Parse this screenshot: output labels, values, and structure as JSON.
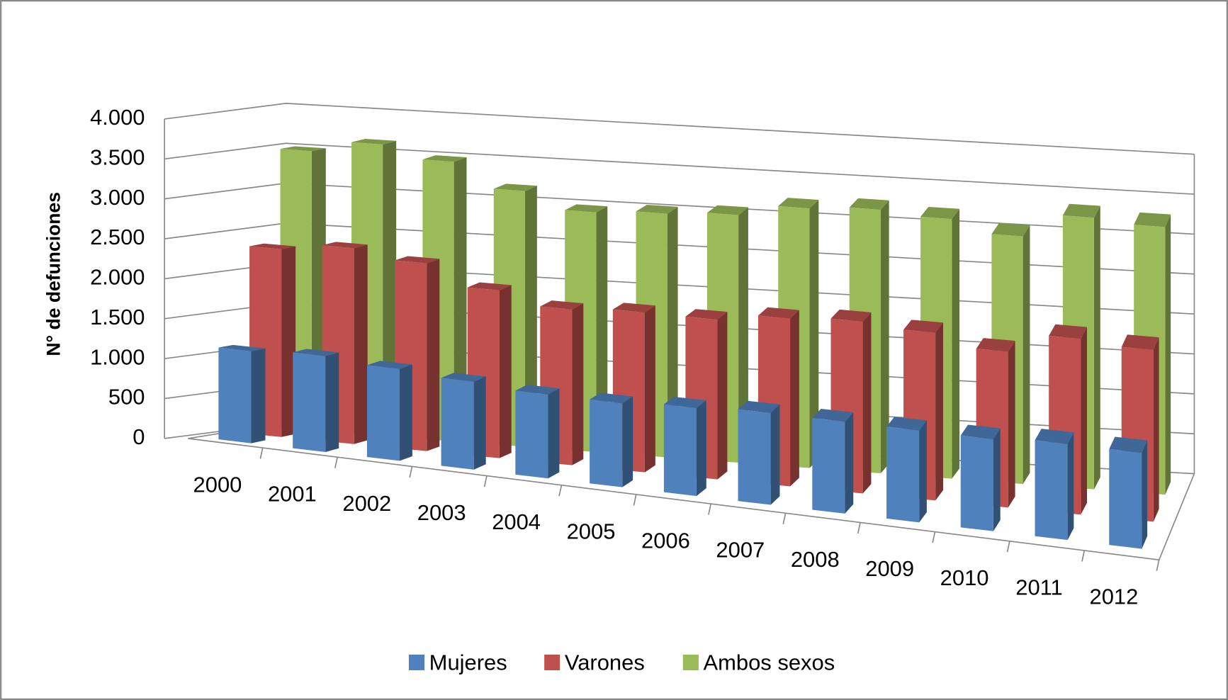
{
  "chart_data": {
    "type": "bar3d",
    "y_label": "N° de defunciones",
    "categories": [
      "2000",
      "2001",
      "2002",
      "2003",
      "2004",
      "2005",
      "2006",
      "2007",
      "2008",
      "2009",
      "2010",
      "2011",
      "2012"
    ],
    "series": [
      {
        "name": "Mujeres",
        "color": "#4f81bd",
        "values": [
          1150,
          1200,
          1150,
          1100,
          1050,
          1050,
          1100,
          1150,
          1150,
          1150,
          1150,
          1200,
          1200
        ]
      },
      {
        "name": "Varones",
        "color": "#c0504d",
        "values": [
          2350,
          2450,
          2350,
          2100,
          1950,
          2000,
          2000,
          2100,
          2150,
          2100,
          1950,
          2200,
          2150
        ]
      },
      {
        "name": "Ambos sexos",
        "color": "#9bbb59",
        "values": [
          3500,
          3650,
          3500,
          3200,
          3000,
          3050,
          3100,
          3250,
          3300,
          3250,
          3100,
          3400,
          3350
        ]
      }
    ],
    "ylim": [
      0,
      4000
    ],
    "yticks": [
      0,
      500,
      {
        "value": 1000,
        "label": "1.000"
      },
      {
        "value": 1500,
        "label": "1.500"
      },
      {
        "value": 2000,
        "label": "2.000"
      },
      {
        "value": 2500,
        "label": "2.500"
      },
      {
        "value": 3000,
        "label": "3.000"
      },
      {
        "value": 3500,
        "label": "3.500"
      },
      {
        "value": 4000,
        "label": "4.000"
      }
    ],
    "grid": true,
    "legend": "bottom"
  }
}
